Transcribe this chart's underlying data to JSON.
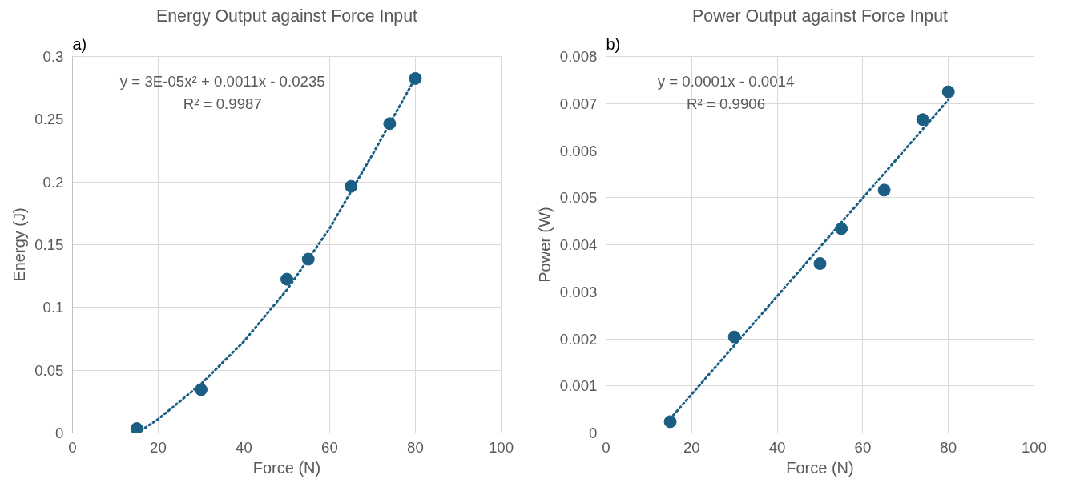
{
  "chart_data": [
    {
      "type": "scatter",
      "title": "Energy Output against Force Input",
      "xlabel": "Force (N)",
      "ylabel": "Energy (J)",
      "xlim": [
        0,
        100
      ],
      "xticks": [
        0,
        20,
        40,
        60,
        80,
        100
      ],
      "ylim": [
        0,
        0.3
      ],
      "yticks": [
        0,
        0.05,
        0.1,
        0.15,
        0.2,
        0.25,
        0.3
      ],
      "grid": true,
      "series": [
        {
          "marker": "circle",
          "color": "#1b5e83",
          "x": [
            15,
            30,
            50,
            55,
            65,
            74,
            80
          ],
          "values": [
            0.0035,
            0.0345,
            0.1225,
            0.1385,
            0.1965,
            0.2465,
            0.2825
          ]
        },
        {
          "type": "line",
          "line_style": "dotted",
          "color": "#1b5e83",
          "x": [
            16,
            20,
            30,
            40,
            50,
            60,
            70,
            80
          ],
          "values": [
            0.002,
            0.011,
            0.039,
            0.073,
            0.114,
            0.163,
            0.222,
            0.283
          ]
        }
      ],
      "annotations": [
        "a)",
        "y = 3E-05x² + 0.0011x - 0.0235",
        "R² = 0.9987"
      ]
    },
    {
      "type": "scatter",
      "title": "Power Output against Force Input",
      "xlabel": "Force (N)",
      "ylabel": "Power (W)",
      "xlim": [
        0,
        100
      ],
      "xticks": [
        0,
        20,
        40,
        60,
        80,
        100
      ],
      "ylim": [
        0,
        0.008
      ],
      "yticks": [
        0,
        0.001,
        0.002,
        0.003,
        0.004,
        0.005,
        0.006,
        0.007,
        0.008
      ],
      "grid": true,
      "series": [
        {
          "marker": "circle",
          "color": "#1b5e83",
          "x": [
            15,
            30,
            50,
            55,
            65,
            74,
            80
          ],
          "values": [
            0.00024,
            0.00204,
            0.0036,
            0.00434,
            0.00516,
            0.00666,
            0.00725
          ]
        },
        {
          "type": "line",
          "line_style": "dotted",
          "color": "#1b5e83",
          "x": [
            15,
            80
          ],
          "values": [
            0.0003,
            0.00708
          ]
        }
      ],
      "annotations": [
        "b)",
        "y = 0.0001x - 0.0014",
        "R² = 0.9906"
      ]
    }
  ]
}
